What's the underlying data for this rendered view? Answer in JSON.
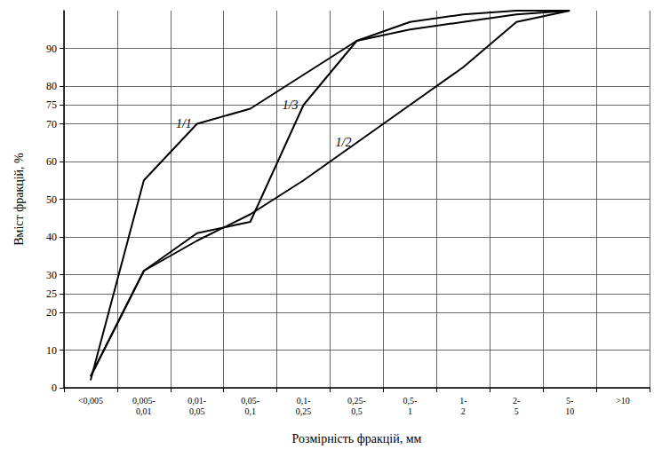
{
  "chart_data": {
    "type": "line",
    "x_label": "Розмірність фракцій, мм",
    "y_label": "Вміст фракцій, %",
    "categories": [
      "<0,005",
      "0,005-0,01",
      "0,01-0,05",
      "0,05-0,1",
      "0,1-0,25",
      "0,25-0,5",
      "0,5-1",
      "1-2",
      "2-5",
      "5-10",
      ">10"
    ],
    "series": [
      {
        "name": "1/1",
        "color": "#000000",
        "values": [
          2,
          55,
          70,
          74,
          83,
          92,
          95,
          97,
          99,
          100,
          null
        ]
      },
      {
        "name": "1/2",
        "color": "#000000",
        "values": [
          3,
          31,
          39,
          46,
          55,
          65,
          75,
          85,
          97,
          100,
          null
        ]
      },
      {
        "name": "1/3",
        "color": "#000000",
        "values": [
          3,
          31,
          41,
          44,
          75,
          92,
          97,
          99,
          100,
          100,
          null
        ]
      }
    ],
    "ylim": [
      0,
      100
    ],
    "yticks": [
      0,
      10,
      20,
      25,
      30,
      40,
      50,
      60,
      70,
      75,
      80,
      90
    ],
    "grid": true,
    "line_style": "solid",
    "marker": "none"
  }
}
